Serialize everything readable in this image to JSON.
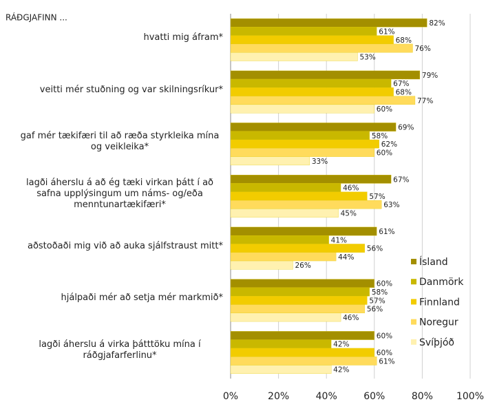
{
  "chart_data": {
    "type": "bar",
    "orientation": "horizontal",
    "title": "RÁÐGJAFINN ...",
    "categories": [
      "hvatti mig áfram*",
      "veitti mér stuðning og var skilningsríkur*",
      "gaf mér tækifæri til að ræða styrkleika mína og veikleika*",
      "lagði áherslu á að ég tæki virkan þátt í að safna upplýsingum um náms- og/eða menntunartækifæri*",
      "aðstoðaði mig við að auka sjálfstraust mitt*",
      "hjálpaði mér að setja mér markmið*",
      "lagði áherslu á virka þátttöku mína í ráðgjafarferlinu*"
    ],
    "series": [
      {
        "name": "Ísland",
        "color": "#a38f00",
        "values": [
          82,
          79,
          69,
          67,
          61,
          60,
          60
        ],
        "value_labels": [
          "82%",
          "79%",
          "69%",
          "67%",
          "61%",
          "60%",
          "60%"
        ]
      },
      {
        "name": "Danmörk",
        "color": "#c9b800",
        "values": [
          61,
          67,
          58,
          46,
          41,
          58,
          42
        ],
        "value_labels": [
          "61%",
          "67%",
          "58%",
          "46%",
          "41%",
          "58%",
          "42%"
        ]
      },
      {
        "name": "Finnland",
        "color": "#f2cc00",
        "values": [
          68,
          68,
          62,
          57,
          56,
          57,
          60
        ],
        "value_labels": [
          "68%",
          "68%",
          "62%",
          "57%",
          "56%",
          "57%",
          "60%"
        ]
      },
      {
        "name": "Noregur",
        "color": "#ffdb5c",
        "values": [
          76,
          77,
          60,
          63,
          44,
          56,
          61
        ],
        "value_labels": [
          "76%",
          "77%",
          "60%",
          "63%",
          "44%",
          "56%",
          "61%"
        ]
      },
      {
        "name": "Svíþjóð",
        "color": "#fff1b0",
        "values": [
          53,
          60,
          33,
          45,
          26,
          46,
          42
        ],
        "value_labels": [
          "53%",
          "60%",
          "33%",
          "45%",
          "26%",
          "46%",
          "42%"
        ]
      }
    ],
    "xlim": [
      0,
      100
    ],
    "xticks": [
      {
        "value": 0,
        "label": "0%"
      },
      {
        "value": 20,
        "label": "20%"
      },
      {
        "value": 40,
        "label": "40%"
      },
      {
        "value": 60,
        "label": "60%"
      },
      {
        "value": 80,
        "label": "80%"
      },
      {
        "value": 100,
        "label": "100%"
      }
    ],
    "grid": true,
    "legend": "right"
  }
}
